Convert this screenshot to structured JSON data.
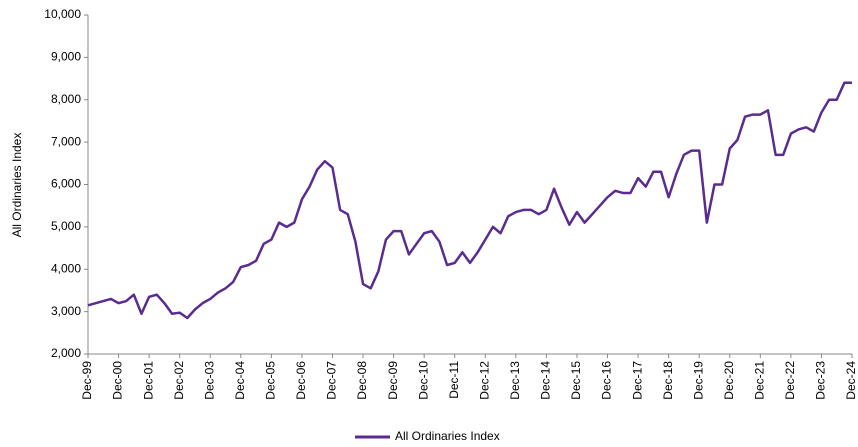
{
  "chart_data": {
    "type": "line",
    "y_label": "All Ordinaries Index",
    "categories": [
      "Dec-99",
      null,
      null,
      null,
      "Dec-00",
      null,
      null,
      null,
      "Dec-01",
      null,
      null,
      null,
      "Dec-02",
      null,
      null,
      null,
      "Dec-03",
      null,
      null,
      null,
      "Dec-04",
      null,
      null,
      null,
      "Dec-05",
      null,
      null,
      null,
      "Dec-06",
      null,
      null,
      null,
      "Dec-07",
      null,
      null,
      null,
      "Dec-08",
      null,
      null,
      null,
      "Dec-09",
      null,
      null,
      null,
      "Dec-10",
      null,
      null,
      null,
      "Dec-11",
      null,
      null,
      null,
      "Dec-12",
      null,
      null,
      null,
      "Dec-13",
      null,
      null,
      null,
      "Dec-14",
      null,
      null,
      null,
      "Dec-15",
      null,
      null,
      null,
      "Dec-16",
      null,
      null,
      null,
      "Dec-17",
      null,
      null,
      null,
      "Dec-18",
      null,
      null,
      null,
      "Dec-19",
      null,
      null,
      null,
      "Dec-20",
      null,
      null,
      null,
      "Dec-21",
      null,
      null,
      null,
      "Dec-22",
      null,
      null,
      null,
      "Dec-23",
      null,
      null,
      null,
      "Dec-24"
    ],
    "series": [
      {
        "name": "All Ordinaries Index",
        "color": "#5b2c8f",
        "values": [
          3150,
          3200,
          3250,
          3300,
          3200,
          3250,
          3400,
          2950,
          3350,
          3400,
          3200,
          2950,
          2975,
          2850,
          3050,
          3200,
          3300,
          3450,
          3550,
          3700,
          4050,
          4100,
          4200,
          4600,
          4700,
          5100,
          5000,
          5100,
          5650,
          5950,
          6350,
          6550,
          6400,
          5400,
          5300,
          4650,
          3650,
          3550,
          3950,
          4700,
          4900,
          4900,
          4350,
          4600,
          4850,
          4900,
          4650,
          4100,
          4150,
          4400,
          4150,
          4400,
          4700,
          5000,
          4850,
          5250,
          5350,
          5400,
          5400,
          5300,
          5400,
          5900,
          5450,
          5050,
          5350,
          5100,
          5300,
          5500,
          5700,
          5850,
          5800,
          5800,
          6150,
          5950,
          6300,
          6300,
          5700,
          6250,
          6700,
          6800,
          6800,
          5100,
          6000,
          6000,
          6850,
          7050,
          7600,
          7650,
          7650,
          7750,
          6700,
          6700,
          7200,
          7300,
          7350,
          7250,
          7700,
          8000,
          8000,
          8400,
          8400
        ]
      }
    ],
    "ylim": [
      2000,
      10000
    ],
    "yticks": [
      {
        "value": 2000,
        "label": "2,000"
      },
      {
        "value": 3000,
        "label": "3,000"
      },
      {
        "value": 4000,
        "label": "4,000"
      },
      {
        "value": 5000,
        "label": "5,000"
      },
      {
        "value": 6000,
        "label": "6,000"
      },
      {
        "value": 7000,
        "label": "7,000"
      },
      {
        "value": 8000,
        "label": "8,000"
      },
      {
        "value": 9000,
        "label": "9,000"
      },
      {
        "value": 10000,
        "label": "10,000"
      }
    ],
    "legend": "bottom"
  }
}
